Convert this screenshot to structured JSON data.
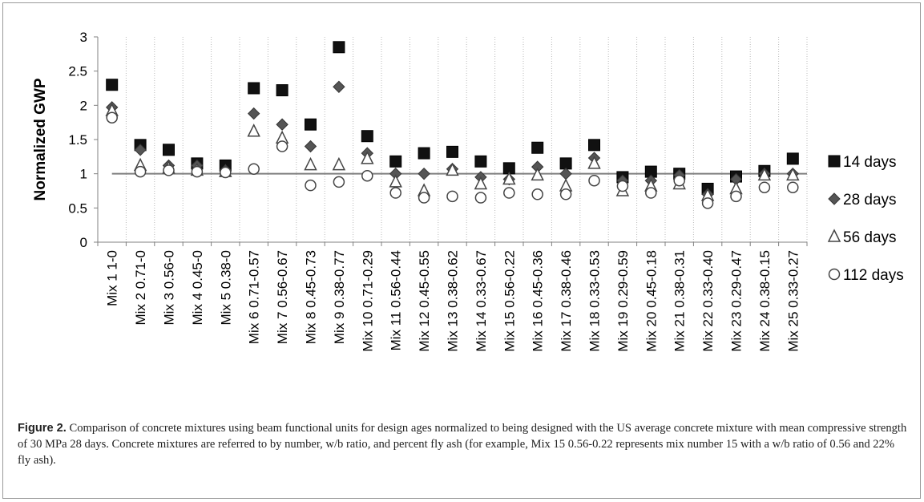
{
  "figure": {
    "label": "Figure 2.",
    "caption": "Comparison of concrete mixtures using beam functional units for design ages normalized to being designed with the US average concrete mixture with mean compressive strength of 30 MPa 28 days. Concrete mixtures are referred to by number, w/b ratio, and percent fly ash (for example, Mix 15 0.56-0.22 represents mix number 15 with a w/b ratio of 0.56 and 22% fly ash)."
  },
  "chart_data": {
    "type": "scatter",
    "title": "",
    "xlabel": "",
    "ylabel": "Normalized GWP",
    "ylim": [
      0,
      3
    ],
    "yticks": [
      "0",
      "0.5",
      "1",
      "1.5",
      "2",
      "2.5",
      "3"
    ],
    "grid": "vertical dotted",
    "reference_line": 1,
    "legend_position": "right",
    "categories": [
      "Mix 1 1-0",
      "Mix 2 0.71-0",
      "Mix 3 0.56-0",
      "Mix 4 0.45-0",
      "Mix 5 0.38-0",
      "Mix 6 0.71-0.57",
      "Mix 7 0.56-0.67",
      "Mix 8 0.45-0.73",
      "Mix 9 0.38-0.77",
      "Mix 10 0.71-0.29",
      "Mix 11 0.56-0.44",
      "Mix 12 0.45-0.55",
      "Mix 13 0.38-0.62",
      "Mix 14 0.33-0.67",
      "Mix 15 0.56-0.22",
      "Mix 16 0.45-0.36",
      "Mix 17 0.38-0.46",
      "Mix 18 0.33-0.53",
      "Mix 19 0.29-0.59",
      "Mix 20 0.45-0.18",
      "Mix 21 0.38-0.31",
      "Mix 22 0.33-0.40",
      "Mix 23 0.29-0.47",
      "Mix 24 0.38-0.15",
      "Mix 25 0.33-0.27"
    ],
    "series": [
      {
        "name": "14 days",
        "marker": "square",
        "values": [
          2.3,
          1.42,
          1.35,
          1.15,
          1.12,
          2.25,
          2.22,
          1.72,
          2.85,
          1.55,
          1.18,
          1.3,
          1.32,
          1.18,
          1.08,
          1.38,
          1.15,
          1.42,
          0.95,
          1.03,
          1.0,
          0.78,
          0.96,
          1.04,
          1.22
        ]
      },
      {
        "name": "28 days",
        "marker": "diamond",
        "values": [
          1.97,
          1.35,
          1.12,
          1.12,
          1.05,
          1.88,
          1.72,
          1.4,
          2.27,
          1.3,
          1.0,
          1.0,
          1.07,
          0.95,
          0.92,
          1.1,
          1.0,
          1.23,
          0.9,
          0.9,
          0.98,
          0.7,
          0.92,
          1.0,
          1.0
        ]
      },
      {
        "name": "56 days",
        "marker": "triangle",
        "values": [
          1.92,
          1.12,
          1.08,
          1.05,
          1.03,
          1.62,
          1.52,
          1.13,
          1.13,
          1.22,
          0.88,
          0.75,
          1.05,
          0.85,
          0.92,
          0.98,
          0.82,
          1.15,
          0.75,
          0.82,
          0.85,
          0.68,
          0.78,
          0.98,
          0.98
        ]
      },
      {
        "name": "112 days",
        "marker": "circle",
        "values": [
          1.82,
          1.03,
          1.05,
          1.03,
          1.02,
          1.07,
          1.4,
          0.83,
          0.88,
          0.97,
          0.72,
          0.65,
          0.67,
          0.65,
          0.72,
          0.7,
          0.7,
          0.9,
          0.82,
          0.72,
          0.9,
          0.57,
          0.67,
          0.8,
          0.8
        ]
      }
    ]
  }
}
